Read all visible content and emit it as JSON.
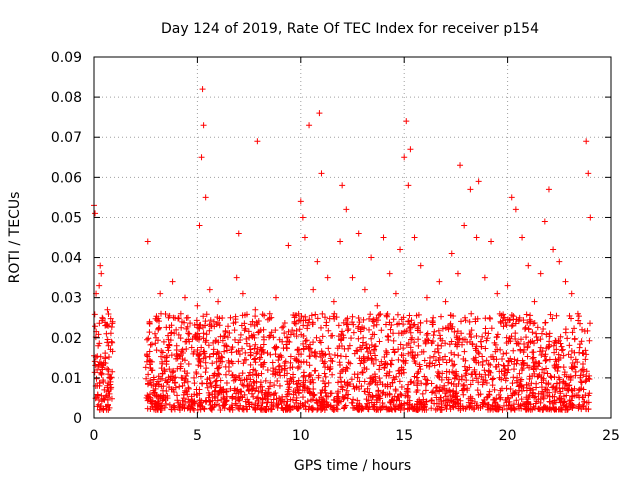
{
  "chart_data": {
    "type": "scatter",
    "title": "Day 124 of 2019, Rate Of TEC Index for receiver p154",
    "xlabel": "GPS time / hours",
    "ylabel": "ROTI / TECUs",
    "xlim": [
      0,
      25
    ],
    "ylim": [
      0,
      0.09
    ],
    "x_ticks": [
      0,
      5,
      10,
      15,
      20,
      25
    ],
    "y_ticks": [
      0,
      0.01,
      0.02,
      0.03,
      0.04,
      0.05,
      0.06,
      0.07,
      0.08,
      0.09
    ],
    "x_tick_labels": [
      "0",
      "5",
      "10",
      "15",
      "20",
      "25"
    ],
    "y_tick_labels": [
      "0",
      "0.01",
      "0.02",
      "0.03",
      "0.04",
      "0.05",
      "0.06",
      "0.07",
      "0.08",
      "0.09"
    ],
    "grid": true,
    "marker": "+",
    "color": "#ff0000",
    "series": [
      {
        "name": "ROTI",
        "x": [
          0.0,
          0.05,
          0.1,
          0.15,
          0.2,
          0.25,
          0.3,
          0.35,
          0.4,
          0.45,
          0.5,
          0.55,
          0.6,
          0.65,
          0.7,
          0.75,
          0.8,
          0.85,
          0.9,
          2.6,
          2.8,
          3.0,
          3.2,
          3.4,
          3.6,
          3.8,
          4.0,
          4.2,
          4.4,
          4.6,
          4.8,
          5.0,
          5.1,
          5.2,
          5.25,
          5.3,
          5.4,
          5.6,
          5.8,
          6.0,
          6.3,
          6.6,
          6.9,
          7.0,
          7.2,
          7.5,
          7.8,
          7.9,
          8.2,
          8.5,
          8.8,
          9.1,
          9.4,
          9.7,
          10.0,
          10.1,
          10.2,
          10.4,
          10.6,
          10.8,
          10.9,
          11.0,
          11.3,
          11.6,
          11.9,
          12.0,
          12.2,
          12.5,
          12.8,
          13.1,
          13.4,
          13.7,
          14.0,
          14.3,
          14.6,
          14.8,
          15.0,
          15.1,
          15.2,
          15.3,
          15.5,
          15.8,
          16.1,
          16.4,
          16.7,
          17.0,
          17.3,
          17.6,
          17.7,
          17.9,
          18.2,
          18.5,
          18.6,
          18.9,
          19.2,
          19.5,
          19.8,
          20.0,
          20.2,
          20.4,
          20.7,
          21.0,
          21.3,
          21.6,
          21.8,
          22.0,
          22.2,
          22.5,
          22.8,
          23.1,
          23.4,
          23.6,
          23.8,
          23.9,
          24.0
        ],
        "y": [
          0.053,
          0.051,
          0.031,
          0.012,
          0.018,
          0.033,
          0.038,
          0.036,
          0.025,
          0.009,
          0.007,
          0.015,
          0.021,
          0.027,
          0.012,
          0.006,
          0.009,
          0.019,
          0.024,
          0.044,
          0.014,
          0.02,
          0.031,
          0.012,
          0.025,
          0.034,
          0.018,
          0.026,
          0.03,
          0.021,
          0.016,
          0.028,
          0.048,
          0.065,
          0.082,
          0.073,
          0.055,
          0.032,
          0.024,
          0.029,
          0.018,
          0.025,
          0.035,
          0.046,
          0.031,
          0.02,
          0.027,
          0.069,
          0.022,
          0.026,
          0.03,
          0.019,
          0.043,
          0.024,
          0.054,
          0.05,
          0.045,
          0.073,
          0.032,
          0.039,
          0.076,
          0.061,
          0.035,
          0.029,
          0.044,
          0.058,
          0.052,
          0.035,
          0.046,
          0.032,
          0.04,
          0.028,
          0.045,
          0.036,
          0.031,
          0.042,
          0.065,
          0.074,
          0.058,
          0.067,
          0.045,
          0.038,
          0.03,
          0.025,
          0.034,
          0.029,
          0.041,
          0.036,
          0.063,
          0.048,
          0.057,
          0.045,
          0.059,
          0.035,
          0.044,
          0.031,
          0.025,
          0.033,
          0.055,
          0.052,
          0.045,
          0.038,
          0.029,
          0.036,
          0.049,
          0.057,
          0.042,
          0.039,
          0.034,
          0.031,
          0.026,
          0.022,
          0.069,
          0.061,
          0.05
        ],
        "baseline": {
          "segments": [
            [
              0.0,
              0.9
            ],
            [
              2.5,
              24.0
            ]
          ],
          "range": [
            0.002,
            0.026
          ],
          "typical": 0.01
        }
      }
    ]
  }
}
